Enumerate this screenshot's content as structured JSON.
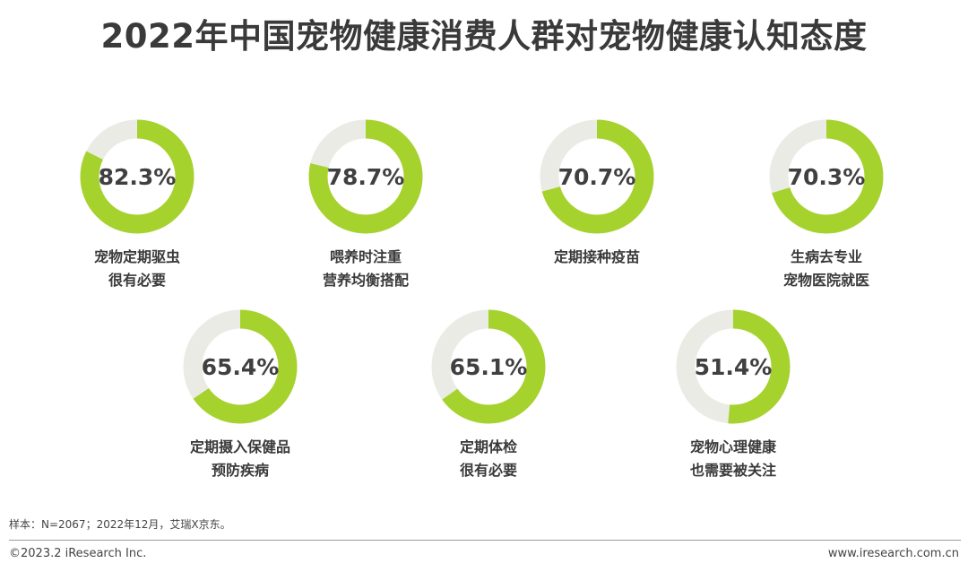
{
  "header": {
    "title": "2022年中国宠物健康消费人群对宠物健康认知态度"
  },
  "chart_data": {
    "type": "pie",
    "variant": "donut",
    "title": "2022年中国宠物健康消费人群对宠物健康认知态度",
    "unit": "%",
    "colors": {
      "fill": "#a6d22d",
      "track": "#ebebe6"
    },
    "items": [
      {
        "label_lines": [
          "宠物定期驱虫",
          "很有必要"
        ],
        "value": 82.3,
        "display": "82.3%"
      },
      {
        "label_lines": [
          "喂养时注重",
          "营养均衡搭配"
        ],
        "value": 78.7,
        "display": "78.7%"
      },
      {
        "label_lines": [
          "定期接种疫苗"
        ],
        "value": 70.7,
        "display": "70.7%"
      },
      {
        "label_lines": [
          "生病去专业",
          "宠物医院就医"
        ],
        "value": 70.3,
        "display": "70.3%"
      },
      {
        "label_lines": [
          "定期摄入保健品",
          "预防疾病"
        ],
        "value": 65.4,
        "display": "65.4%"
      },
      {
        "label_lines": [
          "定期体检",
          "很有必要"
        ],
        "value": 65.1,
        "display": "65.1%"
      },
      {
        "label_lines": [
          "宠物心理健康",
          "也需要被关注"
        ],
        "value": 51.4,
        "display": "51.4%"
      }
    ]
  },
  "notes": {
    "source": "样本：N=2067；2022年12月，艾瑞X京东。"
  },
  "footer": {
    "copyright": "©2023.2 iResearch Inc.",
    "website": "www.iresearch.com.cn"
  }
}
